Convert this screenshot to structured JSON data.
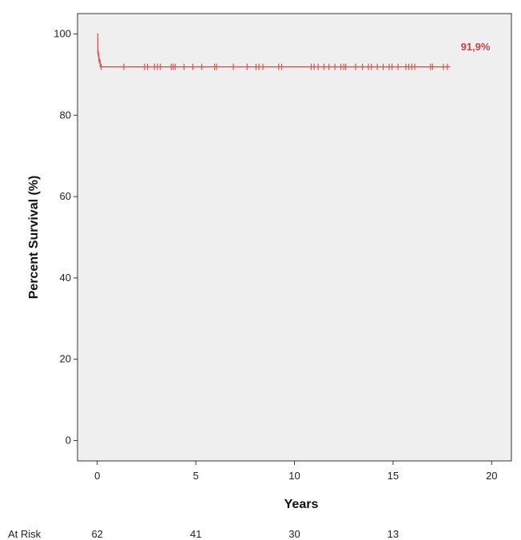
{
  "chart_data": {
    "type": "line",
    "xlabel": "Years",
    "ylabel": "Percent Survival (%)",
    "xlim": [
      -1,
      21
    ],
    "ylim": [
      -5,
      105
    ],
    "xticks": [
      0,
      5,
      10,
      15,
      20
    ],
    "yticks": [
      0,
      20,
      40,
      60,
      80,
      100
    ],
    "grid": false,
    "series": [
      {
        "color": "#d9534f",
        "step_points": [
          [
            0,
            100
          ],
          [
            0.03,
            95.2
          ],
          [
            0.08,
            93.5
          ],
          [
            0.15,
            91.9
          ],
          [
            17.9,
            91.9
          ]
        ],
        "censor_times": [
          0.05,
          0.1,
          0.2,
          1.35,
          2.4,
          2.55,
          2.9,
          3.05,
          3.2,
          3.75,
          3.85,
          3.95,
          4.4,
          4.85,
          5.3,
          5.95,
          6.05,
          6.9,
          7.6,
          8.05,
          8.2,
          8.4,
          9.2,
          9.35,
          10.85,
          11.0,
          11.2,
          11.5,
          11.75,
          12.05,
          12.35,
          12.5,
          12.6,
          13.1,
          13.45,
          13.75,
          13.9,
          14.2,
          14.5,
          14.8,
          14.95,
          15.25,
          15.65,
          15.8,
          15.95,
          16.1,
          16.9,
          17.0,
          17.55,
          17.75
        ]
      }
    ],
    "annotation": {
      "text": "91,9%"
    },
    "at_risk": {
      "label": "At Risk",
      "values": [
        {
          "x": 0,
          "n": "62"
        },
        {
          "x": 5,
          "n": "41"
        },
        {
          "x": 10,
          "n": "30"
        },
        {
          "x": 15,
          "n": "13"
        }
      ]
    }
  }
}
